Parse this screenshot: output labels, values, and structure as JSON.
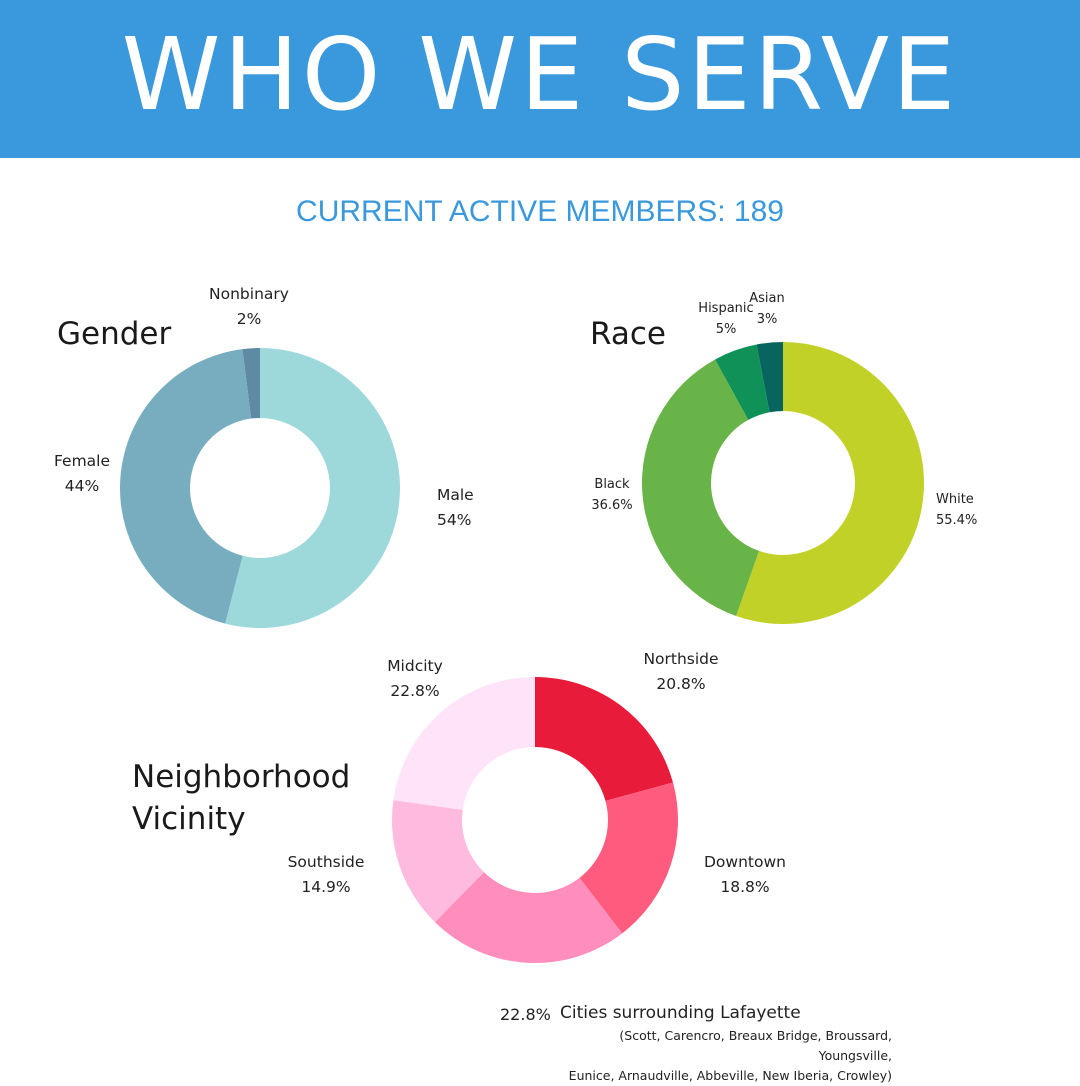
{
  "header": {
    "title": "WHO WE SERVE"
  },
  "subtitle": "CURRENT ACTIVE MEMBERS: 189",
  "chart_data": [
    {
      "type": "pie",
      "title": "Gender",
      "categories": [
        "Male",
        "Female",
        "Nonbinary"
      ],
      "values": [
        54,
        44,
        2
      ],
      "value_labels": [
        "54%",
        "44%",
        "2%"
      ],
      "colors": [
        "#9dd8db",
        "#77adbf",
        "#5e8aa3"
      ]
    },
    {
      "type": "pie",
      "title": "Race",
      "categories": [
        "White",
        "Black",
        "Hispanic",
        "Asian"
      ],
      "values": [
        55.4,
        36.6,
        5,
        3
      ],
      "value_labels": [
        "55.4%",
        "36.6%",
        "5%",
        "3%"
      ],
      "colors": [
        "#c2d127",
        "#69b449",
        "#0f9158",
        "#07645e"
      ]
    },
    {
      "type": "pie",
      "title_lines": [
        "Neighborhood",
        "Vicinity"
      ],
      "categories": [
        "Northside",
        "Downtown",
        "Cities surrounding Lafayette",
        "Southside",
        "Midcity"
      ],
      "values": [
        20.8,
        18.8,
        22.8,
        14.9,
        22.8
      ],
      "value_labels": [
        "20.8%",
        "18.8%",
        "22.8%",
        "14.9%",
        "22.8%"
      ],
      "colors": [
        "#e81c3a",
        "#ff5b7e",
        "#ff8ebd",
        "#ffbae0",
        "#ffe3f8"
      ]
    }
  ],
  "footnote": {
    "percent": "22.8%",
    "title": "Cities surrounding Lafayette",
    "detail_line1": "(Scott, Carencro, Breaux Bridge, Broussard, Youngsville,",
    "detail_line2": "Eunice, Arnaudville, Abbeville, New Iberia, Crowley)"
  }
}
